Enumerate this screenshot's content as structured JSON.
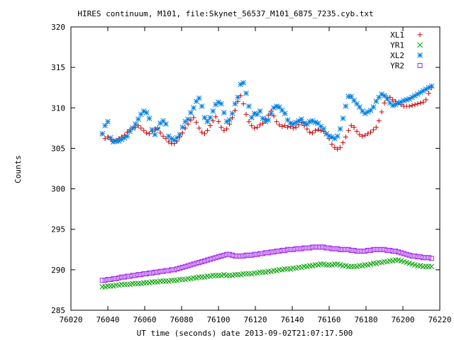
{
  "chart_data": {
    "type": "scatter",
    "title": "HIRES continuum, M101, file:Skynet_56537_M101_6875_7235.cyb.txt",
    "xlabel": "UT time (seconds) date 2013-09-02T21:07:17.500",
    "ylabel": "Counts",
    "xlim": [
      76020,
      76220
    ],
    "ylim": [
      285,
      320
    ],
    "x_ticks": [
      "76020",
      "76040",
      "76060",
      "76080",
      "76100",
      "76120",
      "76140",
      "76160",
      "76180",
      "76200",
      "76220"
    ],
    "y_ticks": [
      "285",
      "290",
      "295",
      "300",
      "305",
      "310",
      "315",
      "320"
    ],
    "grid": false,
    "legend_position": "top-right",
    "x_start": 76037,
    "x_step": 1.5,
    "series": [
      {
        "name": "XL1",
        "marker": "plus",
        "color": "#cc0000",
        "values": [
          306.8,
          306.2,
          306.4,
          306.1,
          305.9,
          306.0,
          306.2,
          306.4,
          306.6,
          307.0,
          307.3,
          307.5,
          307.6,
          307.8,
          307.5,
          307.2,
          306.9,
          306.8,
          307.1,
          307.3,
          307.5,
          306.9,
          306.5,
          306.2,
          305.8,
          305.6,
          305.6,
          305.9,
          306.4,
          306.9,
          307.5,
          308.0,
          308.5,
          308.8,
          308.2,
          307.5,
          307.0,
          306.8,
          307.2,
          307.8,
          308.4,
          308.9,
          308.3,
          307.6,
          307.2,
          307.4,
          308.0,
          308.8,
          309.7,
          310.8,
          311.5,
          310.5,
          309.2,
          308.3,
          307.8,
          307.5,
          307.6,
          307.9,
          308.1,
          308.6,
          309.1,
          309.6,
          309.0,
          308.3,
          307.9,
          307.7,
          307.8,
          307.6,
          307.7,
          307.5,
          307.6,
          307.9,
          308.2,
          307.8,
          307.4,
          307.0,
          306.9,
          307.2,
          307.3,
          307.2,
          307.1,
          306.8,
          306.2,
          305.5,
          305.1,
          304.9,
          305.1,
          305.7,
          306.4,
          307.2,
          307.8,
          307.6,
          307.1,
          306.7,
          306.5,
          306.6,
          306.8,
          307.0,
          307.3,
          307.6,
          308.4,
          309.5,
          310.6,
          311.3,
          311.3,
          311.0,
          310.8,
          310.6,
          310.4,
          310.2,
          310.2,
          310.2,
          310.3,
          310.4,
          310.5,
          310.6,
          310.7,
          311.0,
          311.8,
          312.5
        ]
      },
      {
        "name": "YR1",
        "marker": "cross",
        "color": "#00a000",
        "values": [
          287.9,
          287.9,
          288.0,
          288.0,
          288.0,
          288.1,
          288.1,
          288.2,
          288.2,
          288.2,
          288.2,
          288.3,
          288.3,
          288.3,
          288.3,
          288.4,
          288.4,
          288.4,
          288.5,
          288.5,
          288.5,
          288.6,
          288.6,
          288.6,
          288.6,
          288.7,
          288.7,
          288.7,
          288.8,
          288.8,
          288.8,
          288.9,
          288.9,
          289.0,
          289.0,
          289.1,
          289.1,
          289.1,
          289.2,
          289.2,
          289.3,
          289.3,
          289.3,
          289.3,
          289.4,
          289.3,
          289.3,
          289.3,
          289.4,
          289.4,
          289.4,
          289.5,
          289.5,
          289.5,
          289.5,
          289.6,
          289.6,
          289.7,
          289.7,
          289.7,
          289.8,
          289.8,
          289.9,
          289.9,
          290.0,
          290.0,
          290.1,
          290.1,
          290.1,
          290.2,
          290.2,
          290.3,
          290.3,
          290.4,
          290.4,
          290.5,
          290.5,
          290.6,
          290.6,
          290.7,
          290.7,
          290.6,
          290.6,
          290.6,
          290.7,
          290.7,
          290.6,
          290.5,
          290.5,
          290.4,
          290.4,
          290.4,
          290.4,
          290.5,
          290.5,
          290.6,
          290.6,
          290.7,
          290.8,
          290.8,
          290.9,
          290.9,
          291.0,
          291.0,
          291.1,
          291.1,
          291.2,
          291.2,
          291.1,
          291.0,
          290.9,
          290.8,
          290.7,
          290.6,
          290.5,
          290.5,
          290.4,
          290.4,
          290.4,
          290.4
        ]
      },
      {
        "name": "XL2",
        "marker": "star",
        "color": "#0080e0",
        "values": [
          306.8,
          307.8,
          308.3,
          306.3,
          305.8,
          305.9,
          305.9,
          306.1,
          306.3,
          306.5,
          307.1,
          307.5,
          308.0,
          308.6,
          309.2,
          309.6,
          309.4,
          308.7,
          307.3,
          306.7,
          307.4,
          308.1,
          308.4,
          308.0,
          306.5,
          306.2,
          306.0,
          306.3,
          306.7,
          307.6,
          308.3,
          308.6,
          309.4,
          310.0,
          310.8,
          311.2,
          310.2,
          308.8,
          308.3,
          308.8,
          309.6,
          310.4,
          310.7,
          310.5,
          309.4,
          308.3,
          308.5,
          309.3,
          310.5,
          311.3,
          312.9,
          313.1,
          311.8,
          310.2,
          308.8,
          309.3,
          309.2,
          309.6,
          308.7,
          308.3,
          308.5,
          309.3,
          310.0,
          310.2,
          310.1,
          309.7,
          309.3,
          308.5,
          308.1,
          308.0,
          308.2,
          308.4,
          308.6,
          308.1,
          308.0,
          308.3,
          308.4,
          308.2,
          308.1,
          307.7,
          307.4,
          306.8,
          306.5,
          306.4,
          306.2,
          306.5,
          307.4,
          308.7,
          310.2,
          311.4,
          311.4,
          310.9,
          310.5,
          310.1,
          309.6,
          309.3,
          309.5,
          309.7,
          310.1,
          310.8,
          311.3,
          311.7,
          311.5,
          311.1,
          310.6,
          310.3,
          310.4,
          310.6,
          310.7,
          310.9,
          311.0,
          311.1,
          311.3,
          311.5,
          311.7,
          311.9,
          312.1,
          312.3,
          312.5,
          312.7
        ]
      },
      {
        "name": "YR2",
        "marker": "square",
        "color": "#a020f0",
        "values": [
          288.7,
          288.7,
          288.8,
          288.8,
          288.9,
          288.9,
          289.0,
          289.1,
          289.1,
          289.2,
          289.2,
          289.3,
          289.3,
          289.4,
          289.4,
          289.5,
          289.5,
          289.6,
          289.6,
          289.7,
          289.7,
          289.8,
          289.8,
          289.9,
          289.9,
          290.0,
          290.0,
          290.1,
          290.2,
          290.3,
          290.4,
          290.5,
          290.6,
          290.7,
          290.8,
          290.9,
          291.0,
          291.1,
          291.2,
          291.3,
          291.4,
          291.5,
          291.6,
          291.7,
          291.8,
          291.9,
          291.9,
          291.8,
          291.7,
          291.7,
          291.7,
          291.7,
          291.8,
          291.8,
          291.8,
          291.9,
          291.9,
          292.0,
          292.0,
          292.1,
          292.1,
          292.2,
          292.2,
          292.3,
          292.3,
          292.4,
          292.4,
          292.5,
          292.5,
          292.5,
          292.6,
          292.6,
          292.6,
          292.7,
          292.7,
          292.7,
          292.8,
          292.8,
          292.8,
          292.8,
          292.8,
          292.7,
          292.7,
          292.6,
          292.6,
          292.6,
          292.5,
          292.5,
          292.5,
          292.5,
          292.4,
          292.4,
          292.3,
          292.3,
          292.3,
          292.3,
          292.4,
          292.4,
          292.5,
          292.5,
          292.5,
          292.5,
          292.5,
          292.4,
          292.4,
          292.3,
          292.3,
          292.2,
          292.1,
          292.0,
          291.9,
          291.8,
          291.7,
          291.7,
          291.6,
          291.6,
          291.5,
          291.5,
          291.5,
          291.4
        ]
      }
    ]
  }
}
